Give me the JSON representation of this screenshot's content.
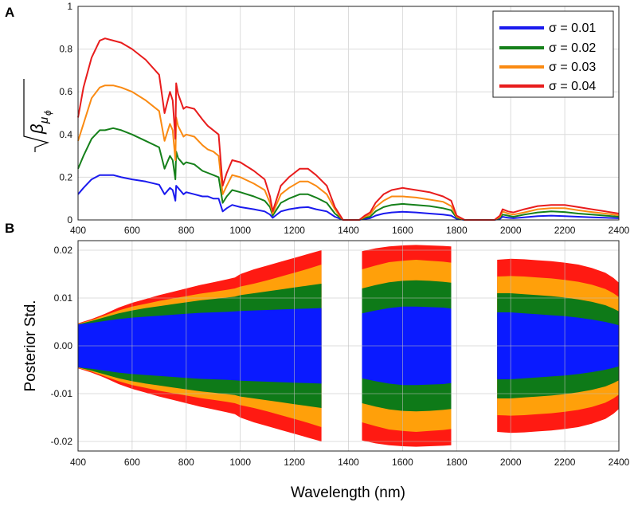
{
  "chart_data": [
    {
      "panel": "A",
      "type": "line",
      "ylabel": "√β_μϕ",
      "xlim": [
        400,
        2400
      ],
      "ylim": [
        0,
        1
      ],
      "xticks": [
        400,
        600,
        800,
        1000,
        1200,
        1400,
        1600,
        1800,
        2000,
        2200,
        2400
      ],
      "yticks": [
        0,
        0.2,
        0.4,
        0.6,
        0.8,
        1
      ],
      "ytick_labels": [
        "0",
        "0.2",
        "0.4",
        "0.6",
        "0.8",
        "1"
      ],
      "grid": true,
      "legend_position": "top-right",
      "x": [
        400,
        420,
        450,
        480,
        500,
        530,
        560,
        600,
        650,
        700,
        720,
        740,
        750,
        760,
        763,
        770,
        790,
        800,
        830,
        860,
        880,
        900,
        920,
        935,
        950,
        970,
        1000,
        1050,
        1090,
        1110,
        1120,
        1130,
        1150,
        1180,
        1220,
        1250,
        1280,
        1320,
        1350,
        1370,
        1380,
        1400,
        1420,
        1440,
        1460,
        1480,
        1500,
        1530,
        1560,
        1600,
        1650,
        1700,
        1750,
        1780,
        1800,
        1830,
        1900,
        1940,
        1960,
        1970,
        1990,
        2010,
        2050,
        2100,
        2150,
        2200,
        2250,
        2300,
        2350,
        2400
      ],
      "series": [
        {
          "name": "σ = 0.01",
          "color": "#1a1aee",
          "values": [
            0.12,
            0.15,
            0.19,
            0.21,
            0.21,
            0.21,
            0.2,
            0.19,
            0.18,
            0.165,
            0.12,
            0.15,
            0.14,
            0.09,
            0.16,
            0.15,
            0.12,
            0.13,
            0.12,
            0.11,
            0.11,
            0.1,
            0.1,
            0.04,
            0.055,
            0.07,
            0.06,
            0.05,
            0.04,
            0.025,
            0.01,
            0.02,
            0.04,
            0.05,
            0.058,
            0.06,
            0.05,
            0.04,
            0.015,
            0.005,
            0,
            0,
            0,
            0,
            0.005,
            0.008,
            0.02,
            0.03,
            0.035,
            0.038,
            0.035,
            0.03,
            0.025,
            0.02,
            0.005,
            0,
            0,
            0,
            0.005,
            0.015,
            0.01,
            0.008,
            0.012,
            0.018,
            0.02,
            0.018,
            0.015,
            0.012,
            0.01,
            0.008
          ]
        },
        {
          "name": "σ = 0.02",
          "color": "#15801a",
          "values": [
            0.24,
            0.3,
            0.38,
            0.42,
            0.42,
            0.43,
            0.42,
            0.4,
            0.37,
            0.34,
            0.24,
            0.3,
            0.28,
            0.19,
            0.32,
            0.29,
            0.26,
            0.27,
            0.26,
            0.23,
            0.22,
            0.21,
            0.2,
            0.08,
            0.11,
            0.14,
            0.13,
            0.11,
            0.09,
            0.06,
            0.02,
            0.04,
            0.08,
            0.1,
            0.12,
            0.12,
            0.105,
            0.08,
            0.03,
            0.01,
            0,
            0,
            0,
            0,
            0.01,
            0.015,
            0.04,
            0.06,
            0.07,
            0.075,
            0.07,
            0.065,
            0.055,
            0.045,
            0.01,
            0,
            0,
            0,
            0.01,
            0.025,
            0.02,
            0.015,
            0.025,
            0.035,
            0.04,
            0.037,
            0.03,
            0.025,
            0.02,
            0.015
          ]
        },
        {
          "name": "σ = 0.03",
          "color": "#fa8a12",
          "values": [
            0.37,
            0.45,
            0.57,
            0.62,
            0.63,
            0.63,
            0.62,
            0.6,
            0.56,
            0.51,
            0.37,
            0.45,
            0.42,
            0.28,
            0.48,
            0.44,
            0.39,
            0.4,
            0.39,
            0.35,
            0.33,
            0.32,
            0.3,
            0.12,
            0.16,
            0.21,
            0.2,
            0.17,
            0.14,
            0.08,
            0.03,
            0.06,
            0.12,
            0.15,
            0.18,
            0.18,
            0.16,
            0.12,
            0.05,
            0.015,
            0,
            0,
            0,
            0,
            0.015,
            0.025,
            0.06,
            0.09,
            0.11,
            0.11,
            0.105,
            0.095,
            0.085,
            0.065,
            0.015,
            0,
            0,
            0,
            0.015,
            0.04,
            0.03,
            0.025,
            0.035,
            0.05,
            0.055,
            0.055,
            0.045,
            0.037,
            0.03,
            0.022
          ]
        },
        {
          "name": "σ = 0.04",
          "color": "#e81c1c",
          "values": [
            0.48,
            0.62,
            0.76,
            0.84,
            0.85,
            0.84,
            0.83,
            0.8,
            0.75,
            0.68,
            0.5,
            0.6,
            0.56,
            0.38,
            0.64,
            0.59,
            0.52,
            0.53,
            0.52,
            0.47,
            0.44,
            0.42,
            0.4,
            0.16,
            0.22,
            0.28,
            0.27,
            0.23,
            0.19,
            0.11,
            0.04,
            0.08,
            0.16,
            0.2,
            0.24,
            0.24,
            0.21,
            0.16,
            0.06,
            0.02,
            0,
            0,
            0,
            0,
            0.02,
            0.035,
            0.08,
            0.12,
            0.14,
            0.15,
            0.14,
            0.13,
            0.11,
            0.09,
            0.02,
            0,
            0,
            0,
            0.02,
            0.05,
            0.04,
            0.035,
            0.05,
            0.065,
            0.07,
            0.07,
            0.06,
            0.05,
            0.04,
            0.03
          ]
        }
      ]
    },
    {
      "panel": "B",
      "type": "area",
      "ylabel": "Posterior Std.",
      "xlabel": "Wavelength (nm)",
      "xlim": [
        400,
        2400
      ],
      "ylim": [
        -0.022,
        0.022
      ],
      "xticks": [
        400,
        600,
        800,
        1000,
        1200,
        1400,
        1600,
        1800,
        2000,
        2200,
        2400
      ],
      "yticks": [
        -0.02,
        -0.01,
        0,
        0.01,
        0.02
      ],
      "ytick_labels": [
        "-0.02",
        "-0.01",
        "0.00",
        "0.01",
        "0.02"
      ],
      "grid": true,
      "note": "symmetric bands about 0; gaps in 1300-1450 and 1780-1950 nm",
      "segments": [
        {
          "x": [
            400,
            450,
            500,
            550,
            600,
            650,
            700,
            750,
            800,
            850,
            900,
            950,
            980,
            1000,
            1050,
            1100,
            1150,
            1200,
            1250,
            1300
          ],
          "series": [
            {
              "name": "σ = 0.01",
              "color": "#0a1aff",
              "values": [
                0.0045,
                0.0048,
                0.0052,
                0.0056,
                0.0059,
                0.0061,
                0.0063,
                0.0065,
                0.0067,
                0.0069,
                0.007,
                0.0071,
                0.0072,
                0.0073,
                0.0074,
                0.0075,
                0.0076,
                0.0077,
                0.0078,
                0.0079
              ]
            },
            {
              "name": "σ = 0.02",
              "color": "#0e7a18",
              "values": [
                0.0045,
                0.0052,
                0.006,
                0.0068,
                0.0074,
                0.0079,
                0.0083,
                0.0087,
                0.0091,
                0.0095,
                0.0098,
                0.0101,
                0.0103,
                0.0106,
                0.011,
                0.0114,
                0.0118,
                0.0122,
                0.0126,
                0.013
              ]
            },
            {
              "name": "σ = 0.03",
              "color": "#ffa00a",
              "values": [
                0.0046,
                0.0054,
                0.0064,
                0.0074,
                0.0082,
                0.0088,
                0.0094,
                0.0099,
                0.0104,
                0.0109,
                0.0113,
                0.0117,
                0.012,
                0.0124,
                0.013,
                0.0137,
                0.0145,
                0.0153,
                0.0161,
                0.017
              ]
            },
            {
              "name": "σ = 0.04",
              "color": "#ff1a12",
              "values": [
                0.0047,
                0.0056,
                0.0067,
                0.008,
                0.009,
                0.0098,
                0.0106,
                0.0113,
                0.012,
                0.0127,
                0.0133,
                0.0139,
                0.0143,
                0.015,
                0.016,
                0.0168,
                0.0176,
                0.0184,
                0.0192,
                0.02
              ]
            }
          ]
        },
        {
          "x": [
            1450,
            1500,
            1550,
            1600,
            1650,
            1700,
            1750,
            1780
          ],
          "series": [
            {
              "name": "σ = 0.01",
              "color": "#0a1aff",
              "values": [
                0.0068,
                0.0074,
                0.0079,
                0.0082,
                0.0082,
                0.0081,
                0.008,
                0.0078
              ]
            },
            {
              "name": "σ = 0.02",
              "color": "#0e7a18",
              "values": [
                0.012,
                0.0127,
                0.0133,
                0.0136,
                0.0137,
                0.0136,
                0.0134,
                0.0132
              ]
            },
            {
              "name": "σ = 0.03",
              "color": "#ffa00a",
              "values": [
                0.016,
                0.0168,
                0.0175,
                0.0178,
                0.018,
                0.0178,
                0.0176,
                0.0174
              ]
            },
            {
              "name": "σ = 0.04",
              "color": "#ff1a12",
              "values": [
                0.0198,
                0.0204,
                0.0208,
                0.021,
                0.0211,
                0.021,
                0.0209,
                0.0208
              ]
            }
          ]
        },
        {
          "x": [
            1950,
            2000,
            2050,
            2100,
            2150,
            2200,
            2250,
            2300,
            2350,
            2380,
            2400
          ],
          "series": [
            {
              "name": "σ = 0.01",
              "color": "#0a1aff",
              "values": [
                0.007,
                0.007,
                0.0068,
                0.0066,
                0.0064,
                0.0062,
                0.0059,
                0.0055,
                0.005,
                0.0046,
                0.0043
              ]
            },
            {
              "name": "σ = 0.02",
              "color": "#0e7a18",
              "values": [
                0.011,
                0.011,
                0.0108,
                0.0106,
                0.0104,
                0.0101,
                0.0097,
                0.0092,
                0.0085,
                0.0078,
                0.0072
              ]
            },
            {
              "name": "σ = 0.03",
              "color": "#ffa00a",
              "values": [
                0.0145,
                0.0146,
                0.0145,
                0.0143,
                0.0141,
                0.0138,
                0.0134,
                0.0128,
                0.0119,
                0.011,
                0.0102
              ]
            },
            {
              "name": "σ = 0.04",
              "color": "#ff1a12",
              "values": [
                0.018,
                0.0182,
                0.0181,
                0.0179,
                0.0177,
                0.0174,
                0.017,
                0.0163,
                0.0153,
                0.0142,
                0.0132
              ]
            }
          ]
        }
      ]
    }
  ],
  "figure": {
    "panel_a_label": "A",
    "panel_b_label": "B",
    "ylabel_a_base": "β",
    "ylabel_a_sub": "μ",
    "ylabel_a_subsub": "ϕ",
    "ylabel_b": "Posterior Std.",
    "xlabel": "Wavelength (nm)",
    "legend": [
      {
        "label": "σ = 0.01",
        "color": "#1a1aee"
      },
      {
        "label": "σ = 0.02",
        "color": "#15801a"
      },
      {
        "label": "σ = 0.03",
        "color": "#fa8a12"
      },
      {
        "label": "σ = 0.04",
        "color": "#e81c1c"
      }
    ]
  }
}
